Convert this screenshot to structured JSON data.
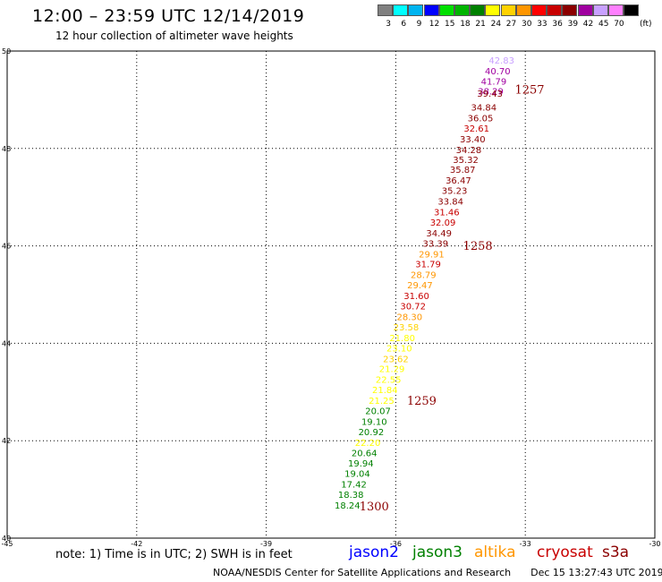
{
  "header": {
    "title": "12:00 – 23:59 UTC 12/14/2019",
    "subtitle": "12 hour collection of altimeter wave heights"
  },
  "color_scale": {
    "unit": "(ft)",
    "items": [
      {
        "label": "3",
        "color": "#808080"
      },
      {
        "label": "6",
        "color": "#00ffff"
      },
      {
        "label": "9",
        "color": "#00b4f0"
      },
      {
        "label": "12",
        "color": "#0000ff"
      },
      {
        "label": "15",
        "color": "#00e000"
      },
      {
        "label": "18",
        "color": "#00b400"
      },
      {
        "label": "21",
        "color": "#008000"
      },
      {
        "label": "24",
        "color": "#ffff00"
      },
      {
        "label": "27",
        "color": "#ffd200"
      },
      {
        "label": "30",
        "color": "#ff9600"
      },
      {
        "label": "33",
        "color": "#ff0000"
      },
      {
        "label": "36",
        "color": "#c80000"
      },
      {
        "label": "39",
        "color": "#8b0000"
      },
      {
        "label": "42",
        "color": "#a000a0"
      },
      {
        "label": "45",
        "color": "#c8a0ff"
      },
      {
        "label": "70",
        "color": "#ff80ff"
      },
      {
        "label": "",
        "color": "#000000"
      }
    ]
  },
  "map": {
    "lon_range": [
      -45,
      -30
    ],
    "lat_range": [
      40,
      50
    ],
    "x_ticks": [
      "-45",
      "-42",
      "-39",
      "-36",
      "-33",
      "-30"
    ],
    "y_ticks": [
      "50",
      "48",
      "46",
      "44",
      "42",
      "40"
    ],
    "x_tick_values": [
      -45,
      -42,
      -39,
      -36,
      -33,
      -30
    ],
    "y_tick_values": [
      50,
      48,
      46,
      44,
      42,
      40
    ]
  },
  "chart_data": {
    "type": "scatter",
    "x_range": [
      -45,
      -30
    ],
    "y_range": [
      40,
      50
    ],
    "points": [
      {
        "lon": -33.55,
        "lat": 49.82,
        "label": "42.83",
        "color": "#c8a0ff"
      },
      {
        "lon": -33.64,
        "lat": 49.6,
        "label": "40.70",
        "color": "#a000a0"
      },
      {
        "lon": -33.73,
        "lat": 49.38,
        "label": "41.79",
        "color": "#a000a0"
      },
      {
        "lon": -33.8,
        "lat": 49.18,
        "label": "38.29",
        "color": "#a000a0"
      },
      {
        "lon": -33.82,
        "lat": 49.14,
        "label": "39.43",
        "color": "#8b0000"
      },
      {
        "lon": -33.96,
        "lat": 48.85,
        "label": "34.84",
        "color": "#8b0000"
      },
      {
        "lon": -34.04,
        "lat": 48.63,
        "label": "36.05",
        "color": "#8b0000"
      },
      {
        "lon": -34.13,
        "lat": 48.42,
        "label": "32.61",
        "color": "#c80000"
      },
      {
        "lon": -34.22,
        "lat": 48.2,
        "label": "33.40",
        "color": "#8b0000"
      },
      {
        "lon": -34.31,
        "lat": 47.98,
        "label": "34.28",
        "color": "#8b0000"
      },
      {
        "lon": -34.38,
        "lat": 47.78,
        "label": "35.32",
        "color": "#8b0000"
      },
      {
        "lon": -34.45,
        "lat": 47.57,
        "label": "35.87",
        "color": "#8b0000"
      },
      {
        "lon": -34.55,
        "lat": 47.35,
        "label": "36.47",
        "color": "#8b0000"
      },
      {
        "lon": -34.64,
        "lat": 47.14,
        "label": "35.23",
        "color": "#8b0000"
      },
      {
        "lon": -34.73,
        "lat": 46.92,
        "label": "33.84",
        "color": "#8b0000"
      },
      {
        "lon": -34.82,
        "lat": 46.7,
        "label": "31.46",
        "color": "#c80000"
      },
      {
        "lon": -34.91,
        "lat": 46.49,
        "label": "32.09",
        "color": "#c80000"
      },
      {
        "lon": -35.0,
        "lat": 46.27,
        "label": "34.49",
        "color": "#8b0000"
      },
      {
        "lon": -35.08,
        "lat": 46.06,
        "label": "33.39",
        "color": "#8b0000"
      },
      {
        "lon": -35.17,
        "lat": 45.84,
        "label": "29.91",
        "color": "#ff9600"
      },
      {
        "lon": -35.25,
        "lat": 45.63,
        "label": "31.79",
        "color": "#c80000"
      },
      {
        "lon": -35.36,
        "lat": 45.41,
        "label": "28.79",
        "color": "#ff9600"
      },
      {
        "lon": -35.44,
        "lat": 45.2,
        "label": "29.47",
        "color": "#ff9600"
      },
      {
        "lon": -35.52,
        "lat": 44.98,
        "label": "31.60",
        "color": "#c80000"
      },
      {
        "lon": -35.6,
        "lat": 44.77,
        "label": "30.72",
        "color": "#c80000"
      },
      {
        "lon": -35.68,
        "lat": 44.55,
        "label": "28.30",
        "color": "#ff9600"
      },
      {
        "lon": -35.76,
        "lat": 44.34,
        "label": "23.58",
        "color": "#ffd200"
      },
      {
        "lon": -35.85,
        "lat": 44.12,
        "label": "21.80",
        "color": "#ffff00"
      },
      {
        "lon": -35.92,
        "lat": 43.91,
        "label": "23.10",
        "color": "#ffff00"
      },
      {
        "lon": -36.0,
        "lat": 43.69,
        "label": "23.62",
        "color": "#ffd200"
      },
      {
        "lon": -36.09,
        "lat": 43.48,
        "label": "21.29",
        "color": "#ffff00"
      },
      {
        "lon": -36.17,
        "lat": 43.26,
        "label": "22.55",
        "color": "#ffff00"
      },
      {
        "lon": -36.25,
        "lat": 43.05,
        "label": "21.84",
        "color": "#ffff00"
      },
      {
        "lon": -36.33,
        "lat": 42.83,
        "label": "21.25",
        "color": "#ffff00"
      },
      {
        "lon": -36.41,
        "lat": 42.62,
        "label": "20.07",
        "color": "#008000"
      },
      {
        "lon": -36.5,
        "lat": 42.4,
        "label": "19.10",
        "color": "#008000"
      },
      {
        "lon": -36.57,
        "lat": 42.19,
        "label": "20.92",
        "color": "#008000"
      },
      {
        "lon": -36.65,
        "lat": 41.97,
        "label": "22.20",
        "color": "#ffff00"
      },
      {
        "lon": -36.73,
        "lat": 41.76,
        "label": "20.64",
        "color": "#008000"
      },
      {
        "lon": -36.81,
        "lat": 41.54,
        "label": "19.94",
        "color": "#008000"
      },
      {
        "lon": -36.89,
        "lat": 41.33,
        "label": "19.04",
        "color": "#008000"
      },
      {
        "lon": -36.97,
        "lat": 41.11,
        "label": "17.42",
        "color": "#008000"
      },
      {
        "lon": -37.04,
        "lat": 40.9,
        "label": "18.38",
        "color": "#008000"
      },
      {
        "lon": -37.12,
        "lat": 40.68,
        "label": "18.24",
        "color": "#008000"
      }
    ],
    "time_labels": [
      {
        "lon": -32.9,
        "lat": 49.22,
        "label": "1257"
      },
      {
        "lon": -34.1,
        "lat": 46.01,
        "label": "1258"
      },
      {
        "lon": -35.4,
        "lat": 42.83,
        "label": "1259"
      },
      {
        "lon": -36.5,
        "lat": 40.66,
        "label": "1300"
      }
    ],
    "time_label_color": "#8b0000"
  },
  "footer": {
    "note": "note:  1) Time is in UTC;  2) SWH is in feet",
    "satellites": [
      {
        "label": "jason2",
        "color": "#0000ff"
      },
      {
        "label": "jason3",
        "color": "#008000"
      },
      {
        "label": "altika",
        "color": "#ff9600"
      },
      {
        "label": "cryosat",
        "color": "#c80000"
      },
      {
        "label": "s3a",
        "color": "#8b0000"
      }
    ],
    "credit": "NOAA/NESDIS Center for Satellite Applications and Research",
    "timestamp": "Dec 15 13:27:43 UTC 2019"
  }
}
